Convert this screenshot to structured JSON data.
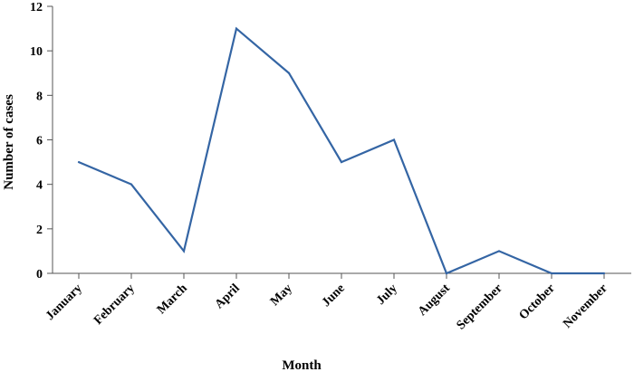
{
  "chart_data": {
    "type": "line",
    "title": "",
    "xlabel": "Month",
    "ylabel": "Number of cases",
    "categories": [
      "January",
      "February",
      "March",
      "April",
      "May",
      "June",
      "July",
      "August",
      "September",
      "October",
      "November"
    ],
    "series": [
      {
        "values": [
          5,
          4,
          1,
          11,
          9,
          5,
          6,
          0,
          1,
          0,
          0
        ],
        "color": "#3465a4"
      }
    ],
    "ylim": [
      0,
      12
    ],
    "yticks": [
      0,
      2,
      4,
      6,
      8,
      10,
      12
    ],
    "grid": false,
    "legend": "none"
  }
}
